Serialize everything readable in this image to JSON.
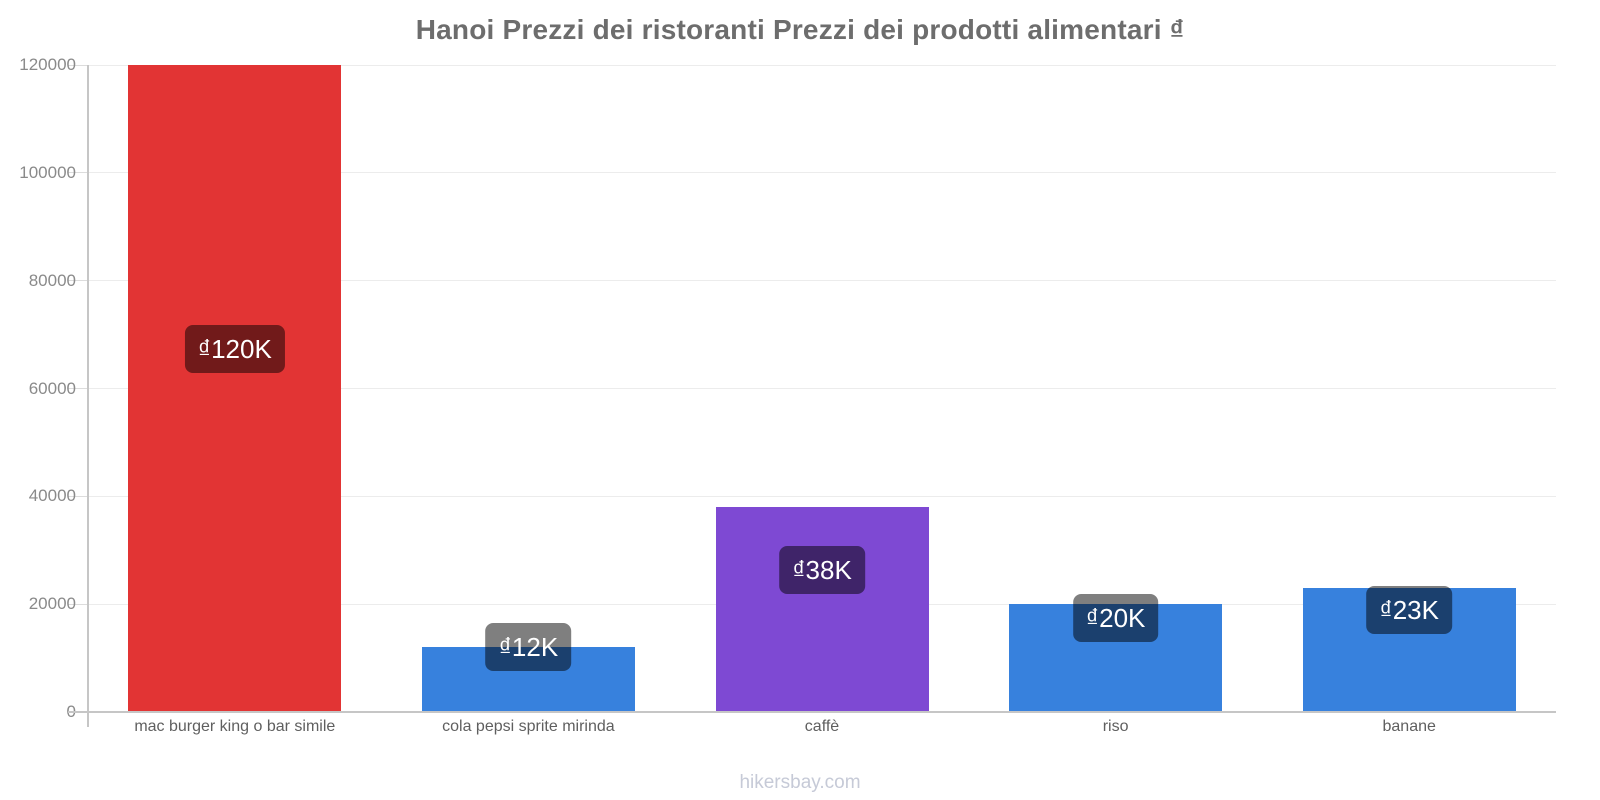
{
  "title": "Hanoi Prezzi dei ristoranti Prezzi dei prodotti alimentari ₫",
  "footer": "hikersbay.com",
  "chart_data": {
    "type": "bar",
    "title": "Hanoi Prezzi dei ristoranti Prezzi dei prodotti alimentari ₫",
    "categories": [
      "mac burger king o bar simile",
      "cola pepsi sprite mirinda",
      "caffè",
      "riso",
      "banane"
    ],
    "values": [
      120000,
      12000,
      38000,
      20000,
      23000
    ],
    "value_labels": [
      "₫120K",
      "₫12K",
      "₫38K",
      "₫20K",
      "₫23K"
    ],
    "bar_colors": [
      "#e23434",
      "#3781dd",
      "#7e49d3",
      "#3781dd",
      "#3781dd"
    ],
    "xlabel": "",
    "ylabel": "",
    "ylim": [
      0,
      120000
    ],
    "ytick_step": 20000,
    "ytick_labels": [
      "0",
      "20000",
      "40000",
      "60000",
      "80000",
      "100000",
      "120000"
    ],
    "grid": true,
    "legend": "none",
    "badge_bg": "rgba(0,0,0,0.5)",
    "badge_text_color": "#ffffff",
    "currency_symbol": "₫"
  }
}
